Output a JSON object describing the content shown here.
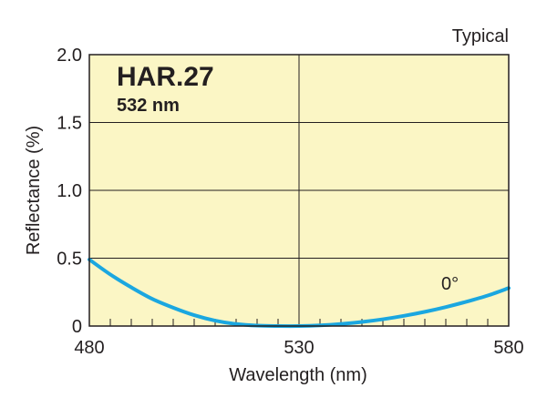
{
  "chart_data": {
    "type": "line",
    "title": "HAR.27",
    "subtitle": "532 nm",
    "corner_label": "Typical",
    "xlabel": "Wavelength (nm)",
    "ylabel": "Reflectance (%)",
    "xlim": [
      480,
      580
    ],
    "ylim": [
      0,
      2.0
    ],
    "x_ticks": [
      480,
      530,
      580
    ],
    "y_ticks": [
      "0",
      "0.5",
      "1.0",
      "1.5",
      "2.0"
    ],
    "x_minor_step": 5,
    "grid": true,
    "series": [
      {
        "name": "0°",
        "x": [
          480,
          485,
          490,
          495,
          500,
          505,
          510,
          515,
          520,
          525,
          530,
          535,
          540,
          545,
          550,
          555,
          560,
          565,
          570,
          575,
          580
        ],
        "y": [
          0.49,
          0.38,
          0.285,
          0.2,
          0.135,
          0.08,
          0.04,
          0.015,
          0.003,
          0.0,
          0.0,
          0.005,
          0.015,
          0.03,
          0.05,
          0.075,
          0.105,
          0.14,
          0.18,
          0.225,
          0.28
        ]
      }
    ],
    "colors": {
      "plot_background": "#fbf6c5",
      "line": "#1ba7e0",
      "grid": "#231f20",
      "text": "#231f20"
    }
  }
}
